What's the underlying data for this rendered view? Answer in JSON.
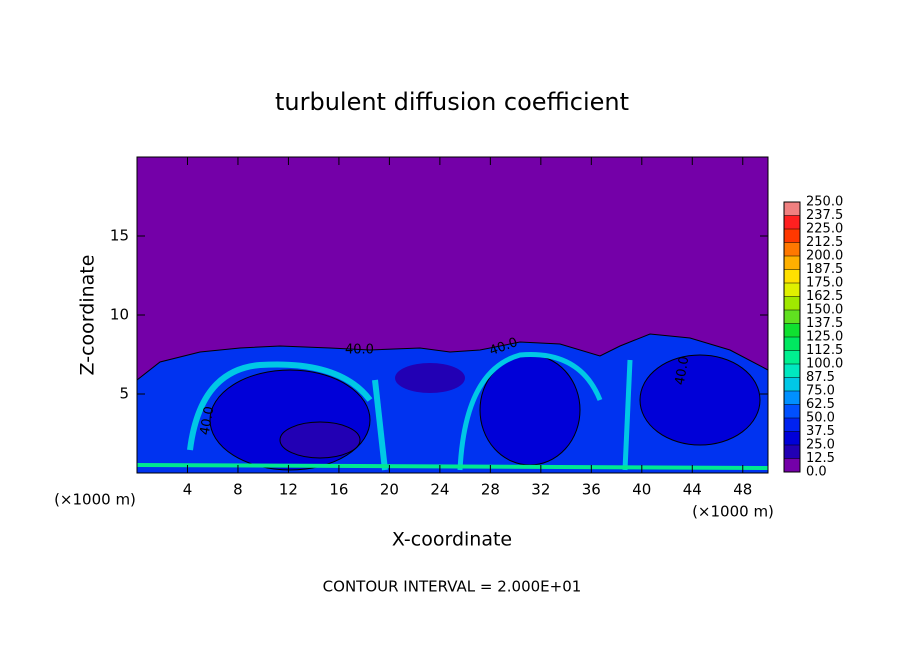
{
  "chart_data": {
    "type": "contour",
    "title": "turbulent diffusion coefficient",
    "xlabel": "X-coordinate",
    "ylabel": "Z-coordinate",
    "x_unit": "(×1000 m)",
    "annotation": "CONTOUR INTERVAL = 2.000E+01",
    "contour_label": {
      "value": 40,
      "label": "40.0"
    },
    "xlim": [
      0,
      50
    ],
    "xticks": [
      4,
      8,
      12,
      16,
      20,
      24,
      28,
      32,
      36,
      40,
      44,
      48
    ],
    "ylim": [
      0,
      20
    ],
    "yticks": [
      5,
      10,
      15
    ],
    "colorbar": {
      "levels": [
        {
          "value": 0,
          "label": "0.0"
        },
        12.5,
        {
          "value": 25,
          "label": "25.0"
        },
        37.5,
        {
          "value": 50,
          "label": "50.0"
        },
        62.5,
        {
          "value": 75,
          "label": "75.0"
        },
        87.5,
        {
          "value": 100,
          "label": "100.0"
        },
        112.5,
        {
          "value": 125,
          "label": "125.0"
        },
        137.5,
        {
          "value": 150,
          "label": "150.0"
        },
        162.5,
        {
          "value": 175,
          "label": "175.0"
        },
        187.5,
        {
          "value": 200,
          "label": "200.0"
        },
        212.5,
        {
          "value": 225,
          "label": "225.0"
        },
        237.5,
        {
          "value": 250,
          "label": "250.0"
        }
      ],
      "colors": [
        "#7400a8",
        "#2200b4",
        "#0000d8",
        "#0022f0",
        "#0050ff",
        "#0090ff",
        "#00c8e6",
        "#00e8c0",
        "#00f090",
        "#00e860",
        "#10e030",
        "#60e020",
        "#a0e800",
        "#e0f000",
        "#ffe000",
        "#ffb000",
        "#ff7800",
        "#ff3800",
        "#ff2020",
        "#f08080"
      ]
    }
  }
}
